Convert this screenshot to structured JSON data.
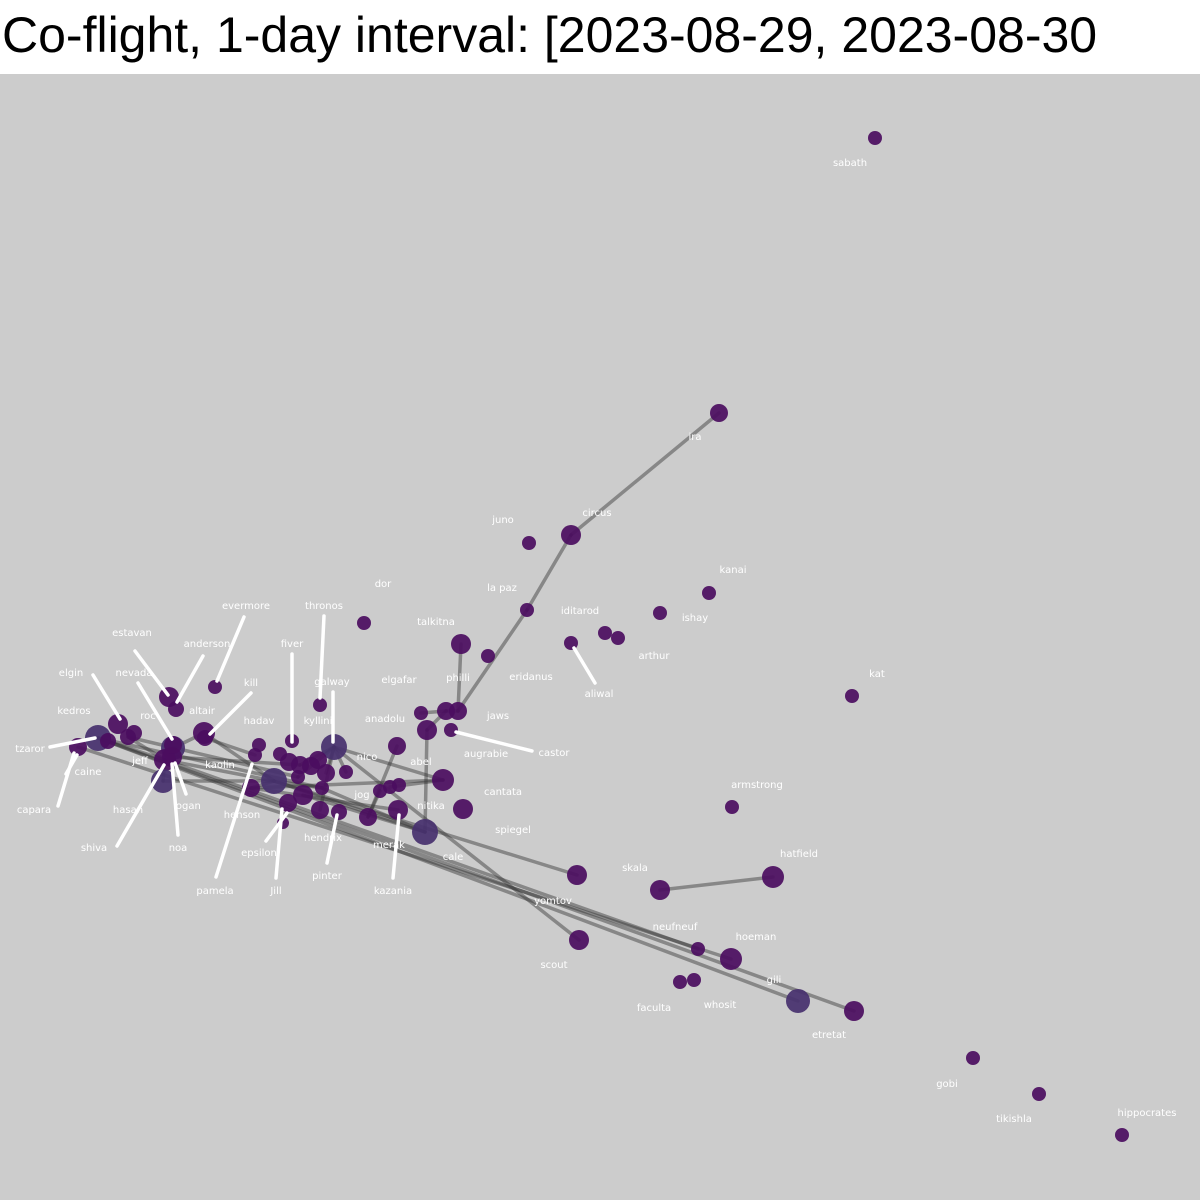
{
  "title": "Co-flight, 1-day interval: [2023-08-29, 2023-08-30",
  "colors": {
    "background": "#cccccc",
    "node_fill": "#4b0d60",
    "edge": "#333333",
    "label": "#ffffff",
    "leader_line": "#ffffff"
  },
  "nodes": [
    {
      "id": "sabath",
      "label": "sabath"
    },
    {
      "id": "ira",
      "label": "ira"
    },
    {
      "id": "circus",
      "label": "circus"
    },
    {
      "id": "juno",
      "label": "juno"
    },
    {
      "id": "la_paz",
      "label": "la paz"
    },
    {
      "id": "dor",
      "label": "dor"
    },
    {
      "id": "kanai",
      "label": "kanai"
    },
    {
      "id": "ishay",
      "label": "ishay"
    },
    {
      "id": "iditarod",
      "label": "iditarod"
    },
    {
      "id": "arthur",
      "label": "arthur"
    },
    {
      "id": "arthur_b",
      "label": ""
    },
    {
      "id": "aliwal",
      "label": "aliwal"
    },
    {
      "id": "eridanus",
      "label": "eridanus"
    },
    {
      "id": "talkitna",
      "label": "talkitna"
    },
    {
      "id": "kat",
      "label": "kat"
    },
    {
      "id": "philli",
      "label": "philli"
    },
    {
      "id": "elgafar",
      "label": "elgafar"
    },
    {
      "id": "jaws",
      "label": "jaws"
    },
    {
      "id": "augrabie",
      "label": "augrabie"
    },
    {
      "id": "castor",
      "label": "castor"
    },
    {
      "id": "anadolu",
      "label": "anadolu"
    },
    {
      "id": "abel",
      "label": "abel"
    },
    {
      "id": "cantata",
      "label": "cantata"
    },
    {
      "id": "nitika",
      "label": "nitika"
    },
    {
      "id": "spiegel",
      "label": "spiegel"
    },
    {
      "id": "cale",
      "label": "cale"
    },
    {
      "id": "merak",
      "label": "merak"
    },
    {
      "id": "kazania",
      "label": "kazania"
    },
    {
      "id": "jog",
      "label": "jog"
    },
    {
      "id": "nico",
      "label": "nico"
    },
    {
      "id": "galway",
      "label": "galway"
    },
    {
      "id": "kyllini",
      "label": "kyllini"
    },
    {
      "id": "thronos",
      "label": "thronos"
    },
    {
      "id": "fiver",
      "label": "fiver"
    },
    {
      "id": "hadav",
      "label": "hadav"
    },
    {
      "id": "kill",
      "label": "kill"
    },
    {
      "id": "evermore",
      "label": "evermore"
    },
    {
      "id": "anderson",
      "label": "anderson"
    },
    {
      "id": "estavan",
      "label": "estavan"
    },
    {
      "id": "altair",
      "label": "altair"
    },
    {
      "id": "nevada",
      "label": "nevada"
    },
    {
      "id": "roc",
      "label": "roc"
    },
    {
      "id": "elgin",
      "label": "elgin"
    },
    {
      "id": "kedros",
      "label": "kedros"
    },
    {
      "id": "tzaror",
      "label": "tzaror"
    },
    {
      "id": "caine",
      "label": "caine"
    },
    {
      "id": "capara",
      "label": "capara"
    },
    {
      "id": "jeff",
      "label": "jeff"
    },
    {
      "id": "hasan",
      "label": "hasan"
    },
    {
      "id": "logan",
      "label": "logan"
    },
    {
      "id": "shiva",
      "label": "shiva"
    },
    {
      "id": "noa",
      "label": "noa"
    },
    {
      "id": "kaolin",
      "label": "kaolin"
    },
    {
      "id": "henson",
      "label": "henson"
    },
    {
      "id": "epsilon",
      "label": "epsilon"
    },
    {
      "id": "pamela",
      "label": "pamela"
    },
    {
      "id": "jill",
      "label": "Jill"
    },
    {
      "id": "hendrix",
      "label": "hendrix"
    },
    {
      "id": "pinter",
      "label": "pinter"
    },
    {
      "id": "armstrong",
      "label": "armstrong"
    },
    {
      "id": "hatfield",
      "label": "hatfield"
    },
    {
      "id": "skala",
      "label": "skala"
    },
    {
      "id": "yomtov",
      "label": "yomtov"
    },
    {
      "id": "scout",
      "label": "scout"
    },
    {
      "id": "neufneuf",
      "label": "neufneuf"
    },
    {
      "id": "hoeman",
      "label": "hoeman"
    },
    {
      "id": "gili",
      "label": "gili"
    },
    {
      "id": "etretat",
      "label": "etretat"
    },
    {
      "id": "faculta",
      "label": "faculta"
    },
    {
      "id": "whosit",
      "label": "whosit"
    },
    {
      "id": "gobi",
      "label": "gobi"
    },
    {
      "id": "tikishla",
      "label": "tikishla"
    },
    {
      "id": "hippocrates",
      "label": "hippocrates"
    },
    {
      "id": "u1",
      "label": ""
    },
    {
      "id": "u2",
      "label": ""
    },
    {
      "id": "u3",
      "label": ""
    },
    {
      "id": "u4",
      "label": ""
    },
    {
      "id": "u5",
      "label": ""
    },
    {
      "id": "u6",
      "label": ""
    },
    {
      "id": "u7",
      "label": ""
    },
    {
      "id": "u8",
      "label": ""
    },
    {
      "id": "u9",
      "label": ""
    },
    {
      "id": "u10",
      "label": ""
    },
    {
      "id": "u11",
      "label": ""
    },
    {
      "id": "u12",
      "label": ""
    },
    {
      "id": "u13",
      "label": ""
    },
    {
      "id": "u14",
      "label": ""
    },
    {
      "id": "u15",
      "label": ""
    },
    {
      "id": "u16",
      "label": ""
    },
    {
      "id": "u17",
      "label": ""
    }
  ],
  "edges": [
    [
      "ira",
      "circus"
    ],
    [
      "circus",
      "la_paz"
    ],
    [
      "la_paz",
      "philli"
    ],
    [
      "talkitna",
      "philli"
    ],
    [
      "philli",
      "elgafar"
    ],
    [
      "elgafar",
      "anadolu"
    ],
    [
      "anadolu",
      "cale"
    ],
    [
      "elgafar",
      "jaws"
    ],
    [
      "hatfield",
      "skala"
    ],
    [
      "hatfield",
      "spiegel"
    ],
    [
      "spiegel",
      "kaolin"
    ],
    [
      "kedros",
      "etretat"
    ],
    [
      "kedros",
      "gili"
    ],
    [
      "tzaror",
      "hoeman"
    ],
    [
      "jeff",
      "neufneuf"
    ],
    [
      "kaolin",
      "yomtov"
    ],
    [
      "kaolin",
      "cale"
    ],
    [
      "galway",
      "scout"
    ],
    [
      "galway",
      "cantata"
    ],
    [
      "galway",
      "nico"
    ],
    [
      "altair",
      "kaolin"
    ],
    [
      "nevada",
      "jeff"
    ],
    [
      "jeff",
      "hasan"
    ],
    [
      "kedros",
      "jeff"
    ],
    [
      "jeff",
      "kaolin"
    ],
    [
      "hasan",
      "kaolin"
    ],
    [
      "nevada",
      "altair"
    ],
    [
      "kaolin",
      "henson"
    ],
    [
      "henson",
      "merak"
    ],
    [
      "cantata",
      "henson"
    ],
    [
      "abel",
      "jog"
    ],
    [
      "kaolin",
      "u4"
    ],
    [
      "u4",
      "cale"
    ],
    [
      "u1",
      "cale"
    ],
    [
      "u5",
      "cantata"
    ],
    [
      "jog",
      "u3"
    ],
    [
      "kazania",
      "cale"
    ],
    [
      "u2",
      "galway"
    ],
    [
      "hendrix",
      "galway"
    ],
    [
      "kill",
      "u7"
    ],
    [
      "jeff",
      "u8"
    ],
    [
      "u8",
      "u6"
    ],
    [
      "u6",
      "galway"
    ],
    [
      "kedros",
      "u4"
    ],
    [
      "u9",
      "galway"
    ],
    [
      "roc",
      "u2"
    ]
  ]
}
